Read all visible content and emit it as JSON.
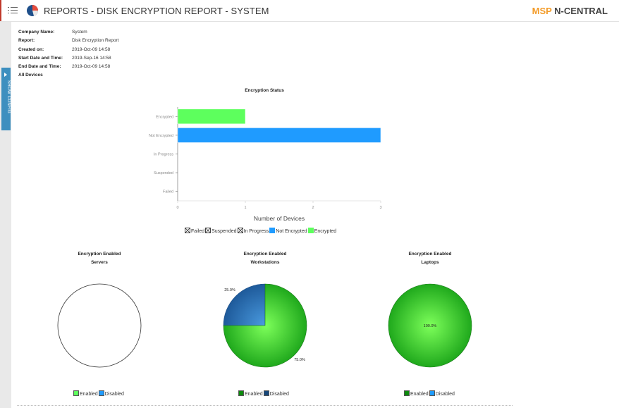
{
  "header": {
    "title": "REPORTS - DISK ENCRYPTION REPORT - SYSTEM",
    "brand_msp": "MSP",
    "brand_name": "N-CENTRAL"
  },
  "sidebar": {
    "config_tab_label": "SHOW CONFIG"
  },
  "report_info": [
    {
      "label": "Company Name:",
      "value": "System"
    },
    {
      "label": "Report:",
      "value": "Disk Encryption Report"
    },
    {
      "label": "Created on:",
      "value": "2019-Oct-09 14:58"
    },
    {
      "label": "Start Date and Time:",
      "value": "2019-Sep-16 14:58"
    },
    {
      "label": "End Date and Time:",
      "value": "2019-Oct-09 14:58"
    },
    {
      "label": "All Devices",
      "value": ""
    }
  ],
  "colors": {
    "encrypted": "#5dff5d",
    "not_encrypted": "#1f9bff",
    "pie_green": "#2bc62b",
    "pie_blue": "#2f6fb3",
    "legend_green": "#0d8a0d",
    "legend_navy": "#16477a"
  },
  "chart_data": [
    {
      "type": "bar",
      "orientation": "horizontal",
      "title": "Encryption Status",
      "categories": [
        "Encrypted",
        "Not Encrypted",
        "In Progress",
        "Suspended",
        "Failed"
      ],
      "values": [
        1,
        3,
        0,
        0,
        0
      ],
      "xlabel": "Number of Devices",
      "xlim": [
        0,
        3
      ],
      "xticks": [
        "0",
        "1",
        "2",
        "3"
      ],
      "legend": [
        "Failed",
        "Suspended",
        "In Progress",
        "Not Encrypted",
        "Encrypted"
      ]
    },
    {
      "type": "pie",
      "title_line1": "Encryption Enabled",
      "title_line2": "Servers",
      "categories": [
        "Enabled",
        "Disabled"
      ],
      "values": [
        0,
        0
      ],
      "labels": []
    },
    {
      "type": "pie",
      "title_line1": "Encryption Enabled",
      "title_line2": "Workstations",
      "categories": [
        "Enabled",
        "Disabled"
      ],
      "values": [
        75.0,
        25.0
      ],
      "labels": [
        "75.0%",
        "25.0%"
      ]
    },
    {
      "type": "pie",
      "title_line1": "Encryption Enabled",
      "title_line2": "Laptops",
      "categories": [
        "Enabled",
        "Disabled"
      ],
      "values": [
        100.0,
        0
      ],
      "labels": [
        "100.0%"
      ]
    }
  ]
}
